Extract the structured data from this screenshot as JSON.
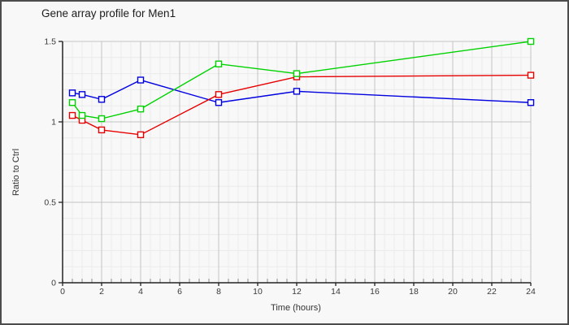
{
  "window": {
    "background": "#f8f8f8",
    "border_color": "#4c4c4c"
  },
  "chart_data": {
    "type": "line",
    "title": "Gene array profile for Men1",
    "xlabel": "Time (hours)",
    "ylabel": "Ratio to Ctrl",
    "x": [
      0.5,
      1,
      2,
      4,
      8,
      12,
      24
    ],
    "series": [
      {
        "name": "blue",
        "color": "#0000e0",
        "marker": "hollow-square",
        "values": [
          1.18,
          1.17,
          1.14,
          1.26,
          1.12,
          1.19,
          1.12
        ]
      },
      {
        "name": "red",
        "color": "#e60000",
        "marker": "hollow-square",
        "values": [
          1.04,
          1.01,
          0.95,
          0.92,
          1.17,
          1.28,
          1.29
        ]
      },
      {
        "name": "green",
        "color": "#00d200",
        "marker": "hollow-square",
        "values": [
          1.12,
          1.04,
          1.02,
          1.08,
          1.36,
          1.3,
          1.5
        ]
      }
    ],
    "xlim": [
      0,
      24
    ],
    "ylim": [
      0,
      1.5
    ],
    "x_tick_values": [
      0,
      2,
      4,
      6,
      8,
      10,
      12,
      14,
      16,
      18,
      20,
      22,
      24
    ],
    "x_tick_labels": [
      "0",
      "2",
      "4",
      "6",
      "8",
      "10",
      "12",
      "14",
      "16",
      "18",
      "20",
      "22",
      "24"
    ],
    "y_tick_values": [
      0,
      0.5,
      1,
      1.5
    ],
    "y_tick_labels": [
      "0",
      "0.5",
      "1",
      "1.5"
    ],
    "grid": {
      "minor_x_step": 0.5,
      "minor_y_step": 0.1,
      "major_color": "#c4c4c4",
      "minor_color": "#ebebeb",
      "minor_tick_color": "#8a8a8a"
    },
    "legend": "none",
    "axis_color": "#222222",
    "marker_fill": "#ffffff"
  }
}
